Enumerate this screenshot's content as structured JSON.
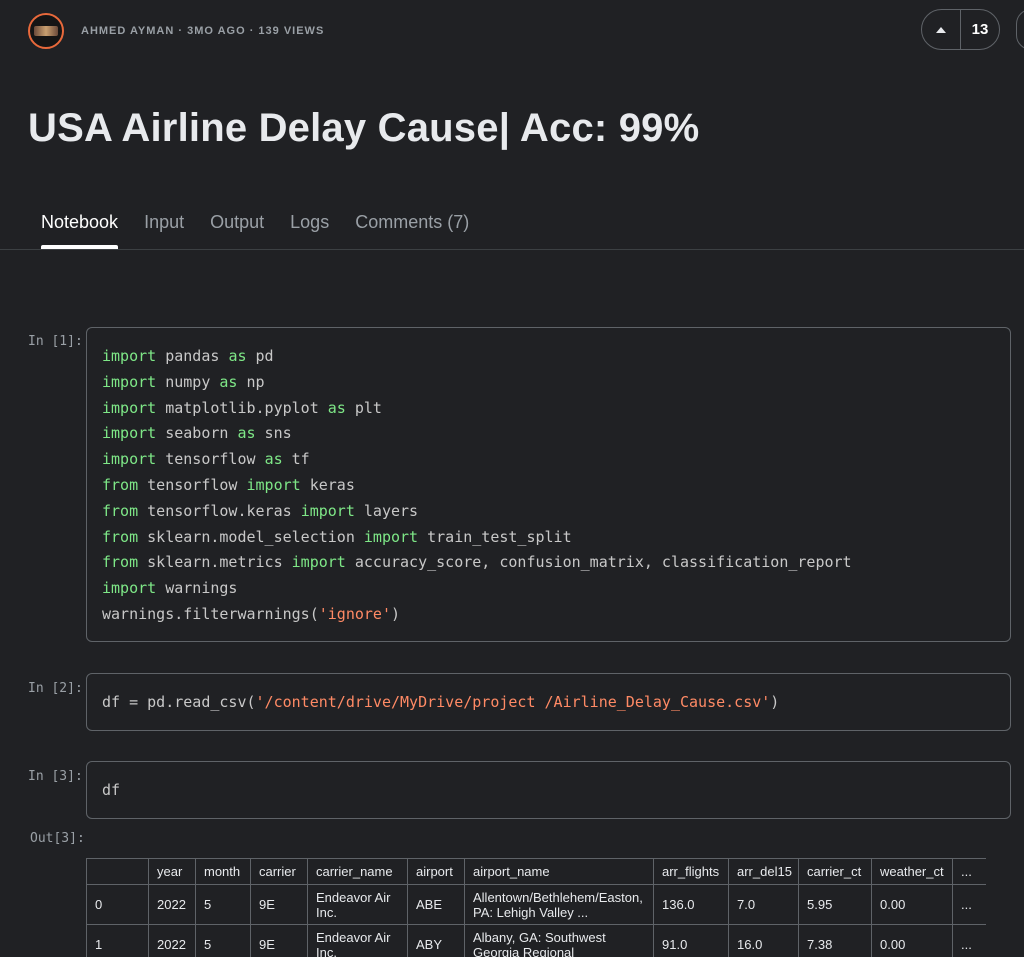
{
  "header": {
    "author": "AHMED AYMAN",
    "separator": " · ",
    "age": "3MO AGO",
    "views": "139 VIEWS",
    "vote_count": "13"
  },
  "title": "USA Airline Delay Cause| Acc: 99%",
  "tabs": [
    {
      "label": "Notebook",
      "active": true
    },
    {
      "label": "Input"
    },
    {
      "label": "Output"
    },
    {
      "label": "Logs"
    },
    {
      "label": "Comments (7)"
    }
  ],
  "cells": [
    {
      "prompt": "In [1]:",
      "lines": [
        [
          [
            "kw",
            "import"
          ],
          [
            "t",
            " pandas "
          ],
          [
            "kw",
            "as"
          ],
          [
            "t",
            " pd"
          ]
        ],
        [
          [
            "kw",
            "import"
          ],
          [
            "t",
            " numpy "
          ],
          [
            "kw",
            "as"
          ],
          [
            "t",
            " np"
          ]
        ],
        [
          [
            "kw",
            "import"
          ],
          [
            "t",
            " matplotlib.pyplot "
          ],
          [
            "kw",
            "as"
          ],
          [
            "t",
            " plt"
          ]
        ],
        [
          [
            "kw",
            "import"
          ],
          [
            "t",
            " seaborn "
          ],
          [
            "kw",
            "as"
          ],
          [
            "t",
            " sns"
          ]
        ],
        [
          [
            "kw",
            "import"
          ],
          [
            "t",
            " tensorflow "
          ],
          [
            "kw",
            "as"
          ],
          [
            "t",
            " tf"
          ]
        ],
        [
          [
            "kw",
            "from"
          ],
          [
            "t",
            " tensorflow "
          ],
          [
            "kw",
            "import"
          ],
          [
            "t",
            " keras"
          ]
        ],
        [
          [
            "kw",
            "from"
          ],
          [
            "t",
            " tensorflow.keras "
          ],
          [
            "kw",
            "import"
          ],
          [
            "t",
            " layers"
          ]
        ],
        [
          [
            "kw",
            "from"
          ],
          [
            "t",
            " sklearn.model_selection "
          ],
          [
            "kw",
            "import"
          ],
          [
            "t",
            " train_test_split"
          ]
        ],
        [
          [
            "kw",
            "from"
          ],
          [
            "t",
            " sklearn.metrics "
          ],
          [
            "kw",
            "import"
          ],
          [
            "t",
            " accuracy_score, confusion_matrix, classification_report"
          ]
        ],
        [
          [
            "kw",
            "import"
          ],
          [
            "t",
            " warnings"
          ]
        ],
        [
          [
            "t",
            "warnings.filterwarnings("
          ],
          [
            "str",
            "'ignore'"
          ],
          [
            "t",
            ")"
          ]
        ]
      ]
    },
    {
      "prompt": "In [2]:",
      "lines": [
        [
          [
            "t",
            "df = pd.read_csv("
          ],
          [
            "str",
            "'/content/drive/MyDrive/project /Airline_Delay_Cause.csv'"
          ],
          [
            "t",
            ")"
          ]
        ]
      ]
    },
    {
      "prompt": "In [3]:",
      "lines": [
        [
          [
            "t",
            "df"
          ]
        ]
      ]
    }
  ],
  "output_prompt": "Out[3]:",
  "dataframe": {
    "columns": [
      "",
      "year",
      "month",
      "carrier",
      "carrier_name",
      "airport",
      "airport_name",
      "arr_flights",
      "arr_del15",
      "carrier_ct",
      "weather_ct",
      "..."
    ],
    "rows": [
      [
        "0",
        "2022",
        "5",
        "9E",
        "Endeavor Air Inc.",
        "ABE",
        "Allentown/Bethlehem/Easton, PA: Lehigh Valley ...",
        "136.0",
        "7.0",
        "5.95",
        "0.00",
        "..."
      ],
      [
        "1",
        "2022",
        "5",
        "9E",
        "Endeavor Air Inc.",
        "ABY",
        "Albany, GA: Southwest Georgia Regional",
        "91.0",
        "16.0",
        "7.38",
        "0.00",
        "..."
      ]
    ]
  }
}
